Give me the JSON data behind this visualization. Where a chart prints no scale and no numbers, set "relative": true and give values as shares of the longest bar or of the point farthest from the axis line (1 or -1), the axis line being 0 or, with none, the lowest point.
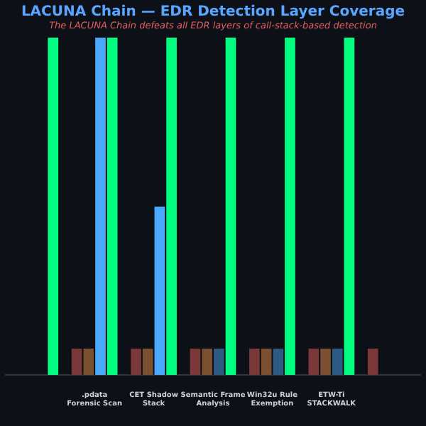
{
  "chart_data": {
    "type": "bar",
    "title": "LACUNA Chain — EDR Detection Layer Coverage",
    "subtitle": "The LACUNA Chain defeats all EDR layers of call-stack-based detection",
    "categories": [
      null,
      ".pdata\nForensic Scan",
      "CET Shadow\nStack",
      "Semantic Frame\nAnalysis",
      "Win32u Rule\nExemption",
      "ETW-Ti\nSTACKWALK",
      null
    ],
    "relative": true,
    "series": [
      {
        "color": "#7a3838",
        "values": [
          null,
          0.08,
          0.08,
          0.08,
          0.08,
          0.08,
          0.08
        ]
      },
      {
        "color": "#7a5030",
        "values": [
          null,
          0.08,
          0.08,
          0.08,
          0.08,
          0.08,
          null
        ]
      },
      {
        "colors": [
          "#2c5a82",
          "#4aa8ff",
          "#4aa8ff",
          "#2c5a82",
          "#2c5a82",
          "#2c5a82",
          "#2c5a82"
        ],
        "values": [
          null,
          1,
          0.5,
          0.08,
          0.08,
          0.08,
          null
        ]
      },
      {
        "color": "#00ff80",
        "values": [
          1,
          1,
          1,
          1,
          1,
          1,
          null
        ]
      }
    ]
  }
}
